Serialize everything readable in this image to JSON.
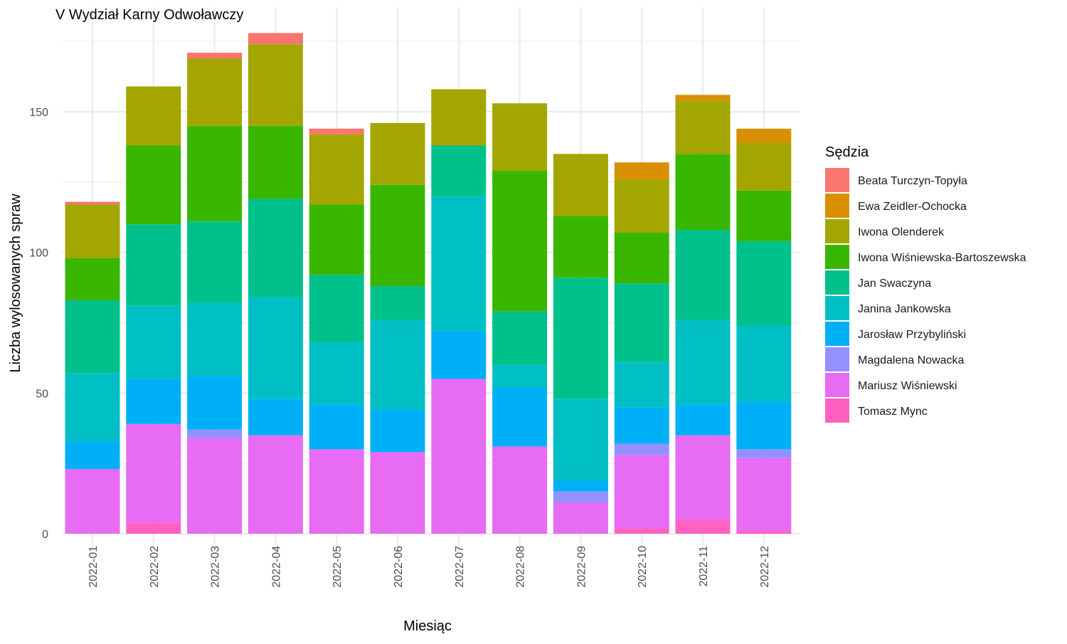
{
  "chart_data": {
    "type": "bar",
    "stacked": true,
    "title": "V Wydział Karny Odwoławczy",
    "xlabel": "Miesiąc",
    "ylabel": "Liczba wylosowanych spraw",
    "ylim": [
      0,
      180
    ],
    "yticks": [
      0,
      50,
      100,
      150
    ],
    "grid": true,
    "legend_title": "Sędzia",
    "legend_position": "right",
    "categories": [
      "2022-01",
      "2022-02",
      "2022-03",
      "2022-04",
      "2022-05",
      "2022-06",
      "2022-07",
      "2022-08",
      "2022-09",
      "2022-10",
      "2022-11",
      "2022-12"
    ],
    "series": [
      {
        "name": "Tomasz Mync",
        "color": "#FF61C3",
        "values": [
          0,
          4,
          0,
          0,
          0,
          0,
          0,
          0,
          0,
          2,
          5,
          1
        ]
      },
      {
        "name": "Mariusz Wiśniewski",
        "color": "#E76BF3",
        "values": [
          23,
          35,
          34,
          35,
          30,
          29,
          55,
          31,
          11,
          26,
          30,
          26
        ]
      },
      {
        "name": "Magdalena Nowacka",
        "color": "#9590FF",
        "values": [
          0,
          0,
          3,
          0,
          0,
          0,
          0,
          0,
          4,
          4,
          0,
          3
        ]
      },
      {
        "name": "Jarosław Przybyliński",
        "color": "#00B0F6",
        "values": [
          10,
          16,
          19,
          13,
          16,
          15,
          17,
          21,
          4,
          13,
          11,
          17
        ]
      },
      {
        "name": "Janina Jankowska",
        "color": "#00BFC4",
        "values": [
          24,
          26,
          26,
          36,
          22,
          32,
          48,
          8,
          29,
          16,
          30,
          27
        ]
      },
      {
        "name": "Jan Swaczyna",
        "color": "#00C08B",
        "values": [
          26,
          29,
          29,
          35,
          24,
          12,
          18,
          19,
          43,
          28,
          32,
          30
        ]
      },
      {
        "name": "Iwona Wiśniewska-Bartoszewska",
        "color": "#39B600",
        "values": [
          15,
          28,
          34,
          26,
          25,
          36,
          0,
          50,
          22,
          18,
          27,
          18
        ]
      },
      {
        "name": "Iwona Olenderek",
        "color": "#A3A500",
        "values": [
          19,
          21,
          24,
          29,
          25,
          22,
          20,
          24,
          22,
          19,
          19,
          17
        ]
      },
      {
        "name": "Ewa Zeidler-Ochocka",
        "color": "#D89000",
        "values": [
          0,
          0,
          0,
          0,
          0,
          0,
          0,
          0,
          0,
          6,
          2,
          5
        ]
      },
      {
        "name": "Beata Turczyn-Topyła",
        "color": "#F8766D",
        "values": [
          1,
          0,
          2,
          4,
          2,
          0,
          0,
          0,
          0,
          0,
          0,
          0
        ]
      }
    ]
  }
}
